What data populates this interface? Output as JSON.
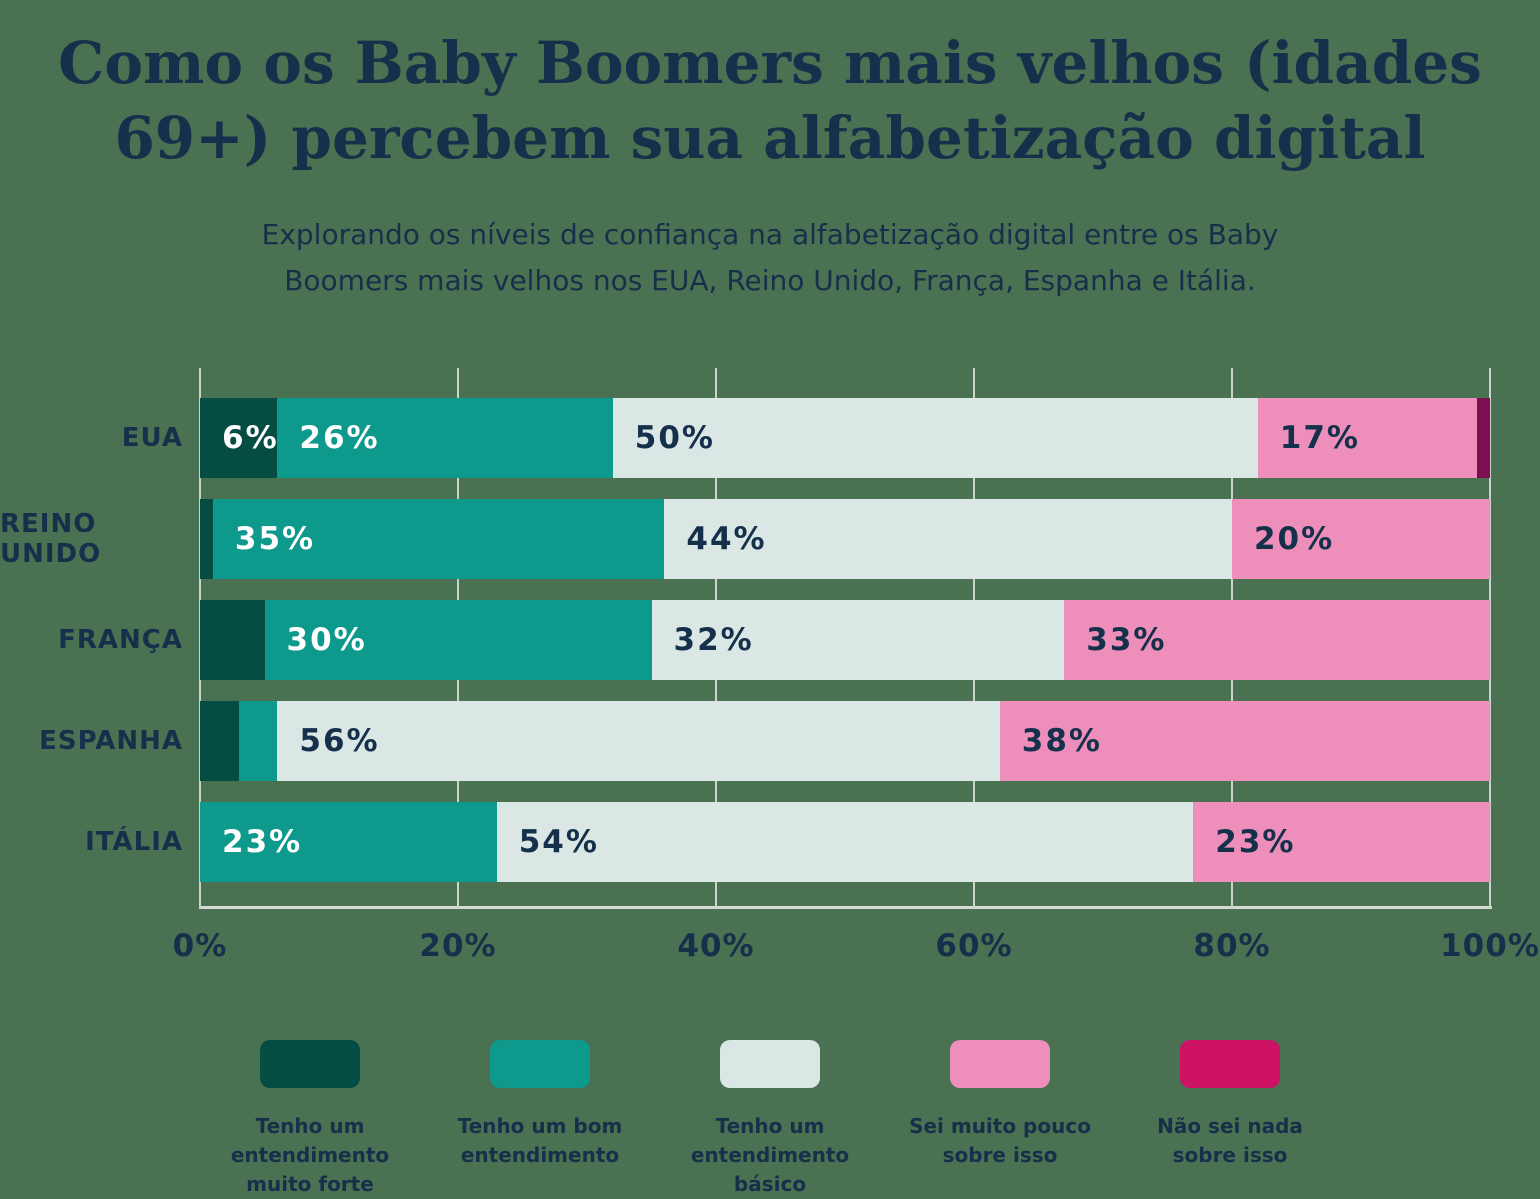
{
  "header": {
    "title_lines": [
      "Como os Baby Boomers mais velhos (idades",
      "69+) percebem sua alfabetização digital"
    ],
    "subtitle_lines": [
      "Explorando os níveis de confiança na alfabetização digital entre os Baby",
      "Boomers mais velhos nos EUA, Reino Unido, França, Espanha e Itália."
    ]
  },
  "colors": {
    "background": "#4a7151",
    "text": "#15304b",
    "grid": "#c9d2cc",
    "strong_understanding": "#054d42",
    "good_understanding": "#0d998c",
    "basic_understanding": "#dbe7e4",
    "know_little": "#ed8fba",
    "know_nothing_legend": "#ce1365",
    "know_nothing_bar": "#7a1052"
  },
  "chart_data": {
    "type": "bar",
    "orientation": "horizontal",
    "stacked": true,
    "title": "Como os Baby Boomers mais velhos (idades 69+) percebem sua alfabetização digital",
    "subtitle": "Explorando os níveis de confiança na alfabetização digital entre os Baby Boomers mais velhos nos EUA, Reino Unido, França, Espanha e Itália.",
    "grid": true,
    "legend_position": "bottom",
    "xlim": [
      0,
      100
    ],
    "xlabel": "",
    "ylabel": "",
    "x_ticks": [
      "0%",
      "20%",
      "40%",
      "60%",
      "80%",
      "100%"
    ],
    "categories": [
      "EUA",
      "REINO UNIDO",
      "FRANÇA",
      "ESPANHA",
      "ITÁLIA"
    ],
    "series": [
      {
        "name": "Tenho um entendimento muito forte",
        "color": "#054d42",
        "legend_color": "#054d42",
        "legend_lines": [
          "Tenho um entendimento",
          "muito forte"
        ],
        "label_color": "#ffffff",
        "values": [
          6,
          1,
          5,
          3,
          0
        ],
        "labels": [
          "6%",
          "",
          "",
          "",
          ""
        ]
      },
      {
        "name": "Tenho um bom entendimento",
        "color": "#0d998c",
        "legend_color": "#0d998c",
        "legend_lines": [
          "Tenho um bom",
          "entendimento"
        ],
        "label_color": "#ffffff",
        "values": [
          26,
          35,
          30,
          3,
          23
        ],
        "labels": [
          "26%",
          "35%",
          "30%",
          "",
          "23%"
        ]
      },
      {
        "name": "Tenho um entendimento básico",
        "color": "#dbe7e4",
        "legend_color": "#dbe7e4",
        "legend_lines": [
          "Tenho um",
          "entendimento básico"
        ],
        "label_color": "#15304b",
        "values": [
          50,
          44,
          32,
          56,
          54
        ],
        "labels": [
          "50%",
          "44%",
          "32%",
          "56%",
          "54%"
        ]
      },
      {
        "name": "Sei muito pouco sobre isso",
        "color": "#ed8fba",
        "legend_color": "#ed8fba",
        "legend_lines": [
          "Sei muito pouco",
          "sobre isso"
        ],
        "label_color": "#15304b",
        "values": [
          17,
          20,
          33,
          38,
          23
        ],
        "labels": [
          "17%",
          "20%",
          "33%",
          "38%",
          "23%"
        ]
      },
      {
        "name": "Não sei nada sobre isso",
        "color": "#7a1052",
        "legend_color": "#ce1365",
        "legend_lines": [
          "Não sei nada",
          "sobre isso"
        ],
        "label_color": "#ffffff",
        "values": [
          1,
          0,
          0,
          0,
          0
        ],
        "labels": [
          "",
          "",
          "",
          "",
          ""
        ]
      }
    ]
  }
}
